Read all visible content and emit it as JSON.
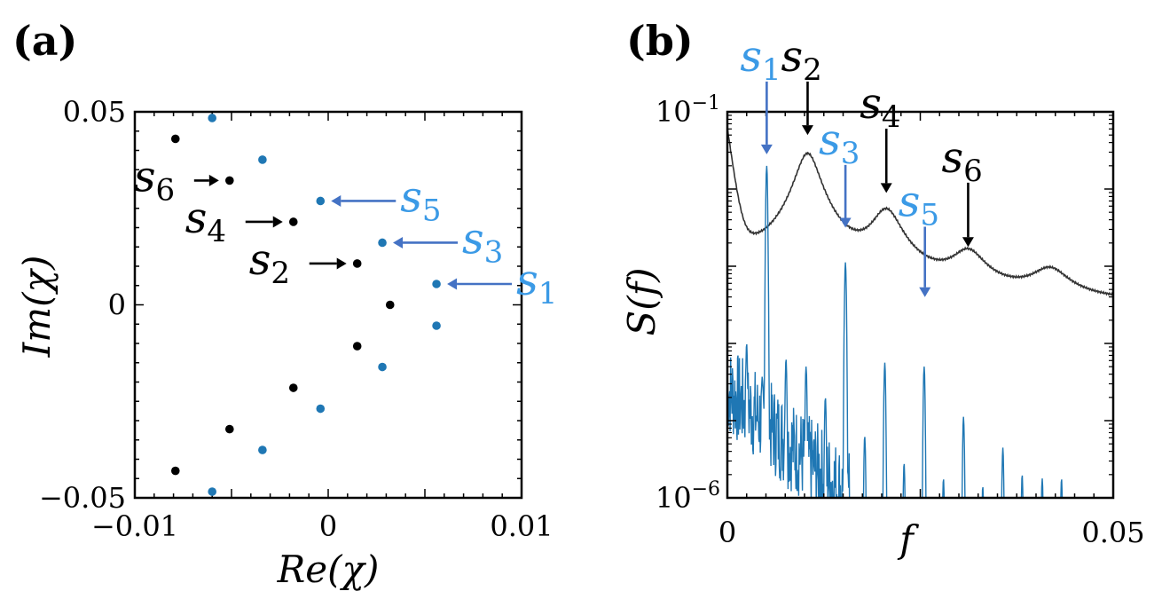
{
  "colors": {
    "black": "#000000",
    "blue": "#1f77b4",
    "label_blue": "#3b9ae6",
    "arrow_blue": "#4472c4",
    "curve_gray": "#333333"
  },
  "chart_data": [
    {
      "panel": "(a)",
      "type": "scatter",
      "xlabel": "Re(χ)",
      "ylabel": "Im(χ)",
      "xlim": [
        -0.01,
        0.01
      ],
      "ylim": [
        -0.05,
        0.05
      ],
      "xticks": [
        {
          "value": -0.01,
          "label": "−0.01"
        },
        {
          "value": 0,
          "label": "0"
        },
        {
          "value": 0.01,
          "label": "0.01"
        }
      ],
      "yticks": [
        {
          "value": 0.05,
          "label": "0.05"
        },
        {
          "value": 0,
          "label": "0"
        },
        {
          "value": -0.05,
          "label": "−0.05"
        }
      ],
      "series": [
        {
          "name": "black",
          "color": "#000000",
          "points": [
            {
              "x": -0.0079,
              "y": 0.043
            },
            {
              "x": -0.0051,
              "y": 0.0322
            },
            {
              "x": -0.0018,
              "y": 0.0215
            },
            {
              "x": 0.0015,
              "y": 0.0107
            },
            {
              "x": 0.0032,
              "y": 0.0
            },
            {
              "x": 0.0015,
              "y": -0.0107
            },
            {
              "x": -0.0018,
              "y": -0.0215
            },
            {
              "x": -0.0051,
              "y": -0.0322
            },
            {
              "x": -0.0079,
              "y": -0.043
            }
          ]
        },
        {
          "name": "blue",
          "color": "#1f77b4",
          "points": [
            {
              "x": -0.006,
              "y": 0.0484
            },
            {
              "x": -0.0034,
              "y": 0.0376
            },
            {
              "x": -0.0004,
              "y": 0.0269
            },
            {
              "x": 0.0028,
              "y": 0.0161
            },
            {
              "x": 0.0056,
              "y": 0.0054
            },
            {
              "x": 0.0056,
              "y": -0.0054
            },
            {
              "x": 0.0028,
              "y": -0.0161
            },
            {
              "x": -0.0004,
              "y": -0.0269
            },
            {
              "x": -0.0034,
              "y": -0.0376
            },
            {
              "x": -0.006,
              "y": -0.0484
            }
          ]
        }
      ],
      "annotations": [
        {
          "base": "s",
          "sub": "6",
          "color": "black",
          "target": {
            "x": -0.0051,
            "y": 0.0322
          }
        },
        {
          "base": "s",
          "sub": "4",
          "color": "black",
          "target": {
            "x": -0.0018,
            "y": 0.0215
          }
        },
        {
          "base": "s",
          "sub": "2",
          "color": "black",
          "target": {
            "x": 0.0015,
            "y": 0.0107
          }
        },
        {
          "base": "s",
          "sub": "5",
          "color": "blue",
          "target": {
            "x": -0.0004,
            "y": 0.0269
          }
        },
        {
          "base": "s",
          "sub": "3",
          "color": "blue",
          "target": {
            "x": 0.0028,
            "y": 0.0161
          }
        },
        {
          "base": "s",
          "sub": "1",
          "color": "blue",
          "target": {
            "x": 0.0056,
            "y": 0.0054
          }
        }
      ]
    },
    {
      "panel": "(b)",
      "type": "line",
      "xlabel": "f",
      "ylabel": "S(f)",
      "xlim": [
        0,
        0.05
      ],
      "ylim_log10": [
        -6,
        -1
      ],
      "xticks": [
        {
          "value": 0,
          "label": "0"
        },
        {
          "value": 0.05,
          "label": "0.05"
        }
      ],
      "yticks": [
        {
          "value": -1,
          "base": "10",
          "exp": "−1"
        },
        {
          "value": -6,
          "base": "10",
          "exp": "−6"
        }
      ],
      "series": [
        {
          "name": "black curve",
          "color": "#333333",
          "baseline_log10": -3.55,
          "baseline_slope": 0.75,
          "peaks": [
            {
              "f": 0.0104,
              "log10_height": -1.55,
              "width": 0.0015
            },
            {
              "f": 0.0206,
              "log10_height": -2.35,
              "width": 0.0019
            },
            {
              "f": 0.0312,
              "log10_height": -3.0,
              "width": 0.0022
            },
            {
              "f": 0.0418,
              "log10_height": -3.3,
              "width": 0.0025
            }
          ]
        },
        {
          "name": "blue spectrum",
          "color": "#1f77b4",
          "noise_region": [
            0.0,
            0.016
          ],
          "noise_level_log10": -4.6,
          "spikes": [
            {
              "f": 0.0025,
              "log10": -4.0
            },
            {
              "f": 0.0051,
              "log10": -1.7
            },
            {
              "f": 0.0076,
              "log10": -4.2
            },
            {
              "f": 0.0102,
              "log10": -4.3
            },
            {
              "f": 0.0127,
              "log10": -4.7
            },
            {
              "f": 0.0153,
              "log10": -2.95
            },
            {
              "f": 0.0178,
              "log10": -5.2
            },
            {
              "f": 0.0204,
              "log10": -4.25
            },
            {
              "f": 0.0229,
              "log10": -5.55
            },
            {
              "f": 0.0255,
              "log10": -4.3
            },
            {
              "f": 0.028,
              "log10": -5.75
            },
            {
              "f": 0.0306,
              "log10": -4.95
            },
            {
              "f": 0.0331,
              "log10": -5.85
            },
            {
              "f": 0.0357,
              "log10": -5.35
            },
            {
              "f": 0.0382,
              "log10": -5.7
            },
            {
              "f": 0.0408,
              "log10": -5.75
            },
            {
              "f": 0.0433,
              "log10": -5.75
            }
          ]
        }
      ],
      "annotations": [
        {
          "base": "s",
          "sub": "1",
          "color": "blue",
          "f": 0.0051,
          "arrow_tip_log10": -1.55,
          "label_log10": -0.47
        },
        {
          "base": "s",
          "sub": "2",
          "color": "black",
          "f": 0.0104,
          "arrow_tip_log10": -1.3,
          "label_log10": -0.47
        },
        {
          "base": "s",
          "sub": "4",
          "color": "black",
          "f": 0.0206,
          "arrow_tip_log10": -2.05,
          "label_log10": -1.08
        },
        {
          "base": "s",
          "sub": "3",
          "color": "blue",
          "f": 0.0153,
          "arrow_tip_log10": -2.5,
          "label_log10": -1.55
        },
        {
          "base": "s",
          "sub": "6",
          "color": "black",
          "f": 0.0312,
          "arrow_tip_log10": -2.75,
          "label_log10": -1.78
        },
        {
          "base": "s",
          "sub": "5",
          "color": "blue",
          "f": 0.0256,
          "arrow_tip_log10": -3.4,
          "label_log10": -2.35
        }
      ]
    }
  ]
}
